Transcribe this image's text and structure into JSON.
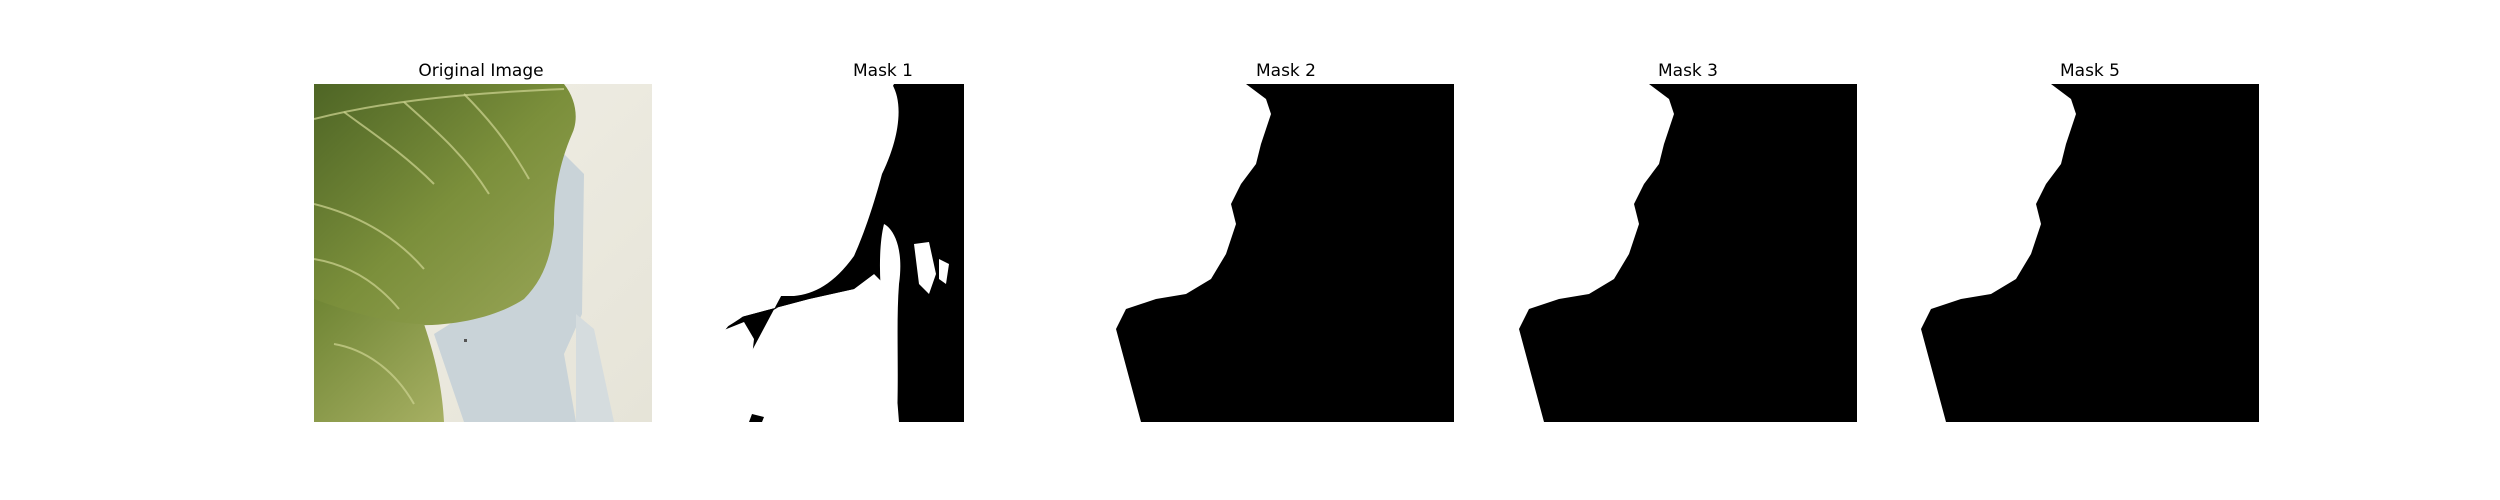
{
  "panels": [
    {
      "title": "Original Image",
      "kind": "photo"
    },
    {
      "title": "Mask 1",
      "kind": "mask"
    },
    {
      "title": "Mask 2",
      "kind": "mask"
    },
    {
      "title": "Mask 3",
      "kind": "mask"
    },
    {
      "title": "Mask 5",
      "kind": "mask"
    }
  ],
  "colors": {
    "mask_foreground": "#000000",
    "mask_background": "#ffffff",
    "leaf_dark": "#55682a",
    "leaf_mid": "#7b8f3b",
    "leaf_light": "#a9b36a",
    "wall_cream": "#ecebe1",
    "shadow_blue": "#c7d1d6"
  }
}
